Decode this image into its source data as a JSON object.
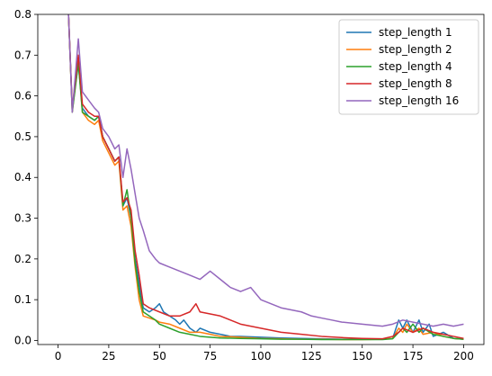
{
  "chart_data": {
    "type": "line",
    "title": "",
    "xlabel": "",
    "ylabel": "",
    "xlim": [
      -10,
      210
    ],
    "ylim": [
      -0.01,
      0.8
    ],
    "x_ticks": [
      0,
      25,
      50,
      75,
      100,
      125,
      150,
      175,
      200
    ],
    "y_ticks": [
      0.0,
      0.1,
      0.2,
      0.3,
      0.4,
      0.5,
      0.6,
      0.7,
      0.8
    ],
    "grid": false,
    "legend_position": "top-right",
    "series": [
      {
        "name": "step_length 1",
        "color": "#1f77b4",
        "points": [
          [
            5,
            0.82
          ],
          [
            7,
            0.57
          ],
          [
            10,
            0.68
          ],
          [
            12,
            0.57
          ],
          [
            15,
            0.55
          ],
          [
            18,
            0.54
          ],
          [
            20,
            0.55
          ],
          [
            22,
            0.5
          ],
          [
            25,
            0.47
          ],
          [
            28,
            0.44
          ],
          [
            30,
            0.45
          ],
          [
            32,
            0.33
          ],
          [
            34,
            0.35
          ],
          [
            36,
            0.3
          ],
          [
            38,
            0.2
          ],
          [
            40,
            0.14
          ],
          [
            42,
            0.08
          ],
          [
            45,
            0.07
          ],
          [
            48,
            0.08
          ],
          [
            50,
            0.09
          ],
          [
            52,
            0.07
          ],
          [
            55,
            0.06
          ],
          [
            58,
            0.05
          ],
          [
            60,
            0.04
          ],
          [
            62,
            0.05
          ],
          [
            65,
            0.03
          ],
          [
            68,
            0.02
          ],
          [
            70,
            0.03
          ],
          [
            75,
            0.02
          ],
          [
            80,
            0.015
          ],
          [
            85,
            0.01
          ],
          [
            90,
            0.01
          ],
          [
            100,
            0.008
          ],
          [
            110,
            0.006
          ],
          [
            120,
            0.005
          ],
          [
            130,
            0.004
          ],
          [
            140,
            0.003
          ],
          [
            150,
            0.003
          ],
          [
            160,
            0.003
          ],
          [
            165,
            0.005
          ],
          [
            168,
            0.05
          ],
          [
            170,
            0.03
          ],
          [
            172,
            0.05
          ],
          [
            175,
            0.02
          ],
          [
            178,
            0.05
          ],
          [
            180,
            0.02
          ],
          [
            183,
            0.04
          ],
          [
            185,
            0.01
          ],
          [
            190,
            0.02
          ],
          [
            195,
            0.005
          ],
          [
            200,
            0.003
          ]
        ]
      },
      {
        "name": "step_length 2",
        "color": "#ff7f0e",
        "points": [
          [
            5,
            0.82
          ],
          [
            7,
            0.56
          ],
          [
            10,
            0.69
          ],
          [
            12,
            0.56
          ],
          [
            15,
            0.54
          ],
          [
            18,
            0.53
          ],
          [
            20,
            0.54
          ],
          [
            22,
            0.49
          ],
          [
            25,
            0.46
          ],
          [
            28,
            0.43
          ],
          [
            30,
            0.44
          ],
          [
            32,
            0.32
          ],
          [
            34,
            0.33
          ],
          [
            36,
            0.28
          ],
          [
            38,
            0.18
          ],
          [
            40,
            0.1
          ],
          [
            42,
            0.06
          ],
          [
            45,
            0.055
          ],
          [
            48,
            0.05
          ],
          [
            50,
            0.045
          ],
          [
            55,
            0.04
          ],
          [
            60,
            0.03
          ],
          [
            65,
            0.02
          ],
          [
            70,
            0.02
          ],
          [
            75,
            0.015
          ],
          [
            80,
            0.01
          ],
          [
            90,
            0.008
          ],
          [
            100,
            0.005
          ],
          [
            110,
            0.004
          ],
          [
            120,
            0.003
          ],
          [
            130,
            0.003
          ],
          [
            140,
            0.002
          ],
          [
            150,
            0.002
          ],
          [
            160,
            0.003
          ],
          [
            165,
            0.005
          ],
          [
            168,
            0.03
          ],
          [
            170,
            0.02
          ],
          [
            172,
            0.04
          ],
          [
            175,
            0.02
          ],
          [
            178,
            0.03
          ],
          [
            180,
            0.015
          ],
          [
            185,
            0.02
          ],
          [
            190,
            0.01
          ],
          [
            195,
            0.005
          ],
          [
            200,
            0.003
          ]
        ]
      },
      {
        "name": "step_length 4",
        "color": "#2ca02c",
        "points": [
          [
            5,
            0.82
          ],
          [
            7,
            0.56
          ],
          [
            10,
            0.68
          ],
          [
            12,
            0.56
          ],
          [
            15,
            0.55
          ],
          [
            18,
            0.54
          ],
          [
            20,
            0.55
          ],
          [
            22,
            0.5
          ],
          [
            25,
            0.47
          ],
          [
            28,
            0.44
          ],
          [
            30,
            0.45
          ],
          [
            32,
            0.33
          ],
          [
            34,
            0.37
          ],
          [
            36,
            0.3
          ],
          [
            38,
            0.19
          ],
          [
            40,
            0.12
          ],
          [
            42,
            0.07
          ],
          [
            45,
            0.06
          ],
          [
            48,
            0.05
          ],
          [
            50,
            0.04
          ],
          [
            55,
            0.03
          ],
          [
            60,
            0.02
          ],
          [
            65,
            0.015
          ],
          [
            70,
            0.01
          ],
          [
            75,
            0.008
          ],
          [
            80,
            0.006
          ],
          [
            90,
            0.005
          ],
          [
            100,
            0.004
          ],
          [
            110,
            0.003
          ],
          [
            120,
            0.003
          ],
          [
            130,
            0.002
          ],
          [
            140,
            0.002
          ],
          [
            150,
            0.002
          ],
          [
            160,
            0.002
          ],
          [
            165,
            0.004
          ],
          [
            168,
            0.02
          ],
          [
            170,
            0.03
          ],
          [
            172,
            0.02
          ],
          [
            175,
            0.04
          ],
          [
            178,
            0.02
          ],
          [
            180,
            0.03
          ],
          [
            185,
            0.015
          ],
          [
            190,
            0.01
          ],
          [
            195,
            0.005
          ],
          [
            200,
            0.003
          ]
        ]
      },
      {
        "name": "step_length 8",
        "color": "#d62728",
        "points": [
          [
            5,
            0.82
          ],
          [
            7,
            0.57
          ],
          [
            10,
            0.7
          ],
          [
            12,
            0.58
          ],
          [
            15,
            0.56
          ],
          [
            18,
            0.55
          ],
          [
            20,
            0.55
          ],
          [
            22,
            0.5
          ],
          [
            25,
            0.47
          ],
          [
            28,
            0.44
          ],
          [
            30,
            0.45
          ],
          [
            32,
            0.34
          ],
          [
            34,
            0.35
          ],
          [
            36,
            0.32
          ],
          [
            38,
            0.22
          ],
          [
            40,
            0.16
          ],
          [
            42,
            0.09
          ],
          [
            45,
            0.08
          ],
          [
            50,
            0.07
          ],
          [
            55,
            0.06
          ],
          [
            60,
            0.06
          ],
          [
            65,
            0.07
          ],
          [
            68,
            0.09
          ],
          [
            70,
            0.07
          ],
          [
            75,
            0.065
          ],
          [
            80,
            0.06
          ],
          [
            85,
            0.05
          ],
          [
            90,
            0.04
          ],
          [
            95,
            0.035
          ],
          [
            100,
            0.03
          ],
          [
            110,
            0.02
          ],
          [
            120,
            0.015
          ],
          [
            130,
            0.01
          ],
          [
            140,
            0.007
          ],
          [
            150,
            0.005
          ],
          [
            160,
            0.004
          ],
          [
            165,
            0.01
          ],
          [
            168,
            0.02
          ],
          [
            170,
            0.03
          ],
          [
            175,
            0.02
          ],
          [
            180,
            0.03
          ],
          [
            185,
            0.02
          ],
          [
            190,
            0.015
          ],
          [
            195,
            0.01
          ],
          [
            200,
            0.005
          ]
        ]
      },
      {
        "name": "step_length 16",
        "color": "#9467bd",
        "points": [
          [
            5,
            0.82
          ],
          [
            7,
            0.56
          ],
          [
            10,
            0.74
          ],
          [
            12,
            0.61
          ],
          [
            15,
            0.59
          ],
          [
            18,
            0.57
          ],
          [
            20,
            0.56
          ],
          [
            22,
            0.52
          ],
          [
            25,
            0.5
          ],
          [
            28,
            0.47
          ],
          [
            30,
            0.48
          ],
          [
            32,
            0.4
          ],
          [
            34,
            0.47
          ],
          [
            36,
            0.42
          ],
          [
            38,
            0.36
          ],
          [
            40,
            0.3
          ],
          [
            42,
            0.27
          ],
          [
            45,
            0.22
          ],
          [
            48,
            0.2
          ],
          [
            50,
            0.19
          ],
          [
            55,
            0.18
          ],
          [
            60,
            0.17
          ],
          [
            65,
            0.16
          ],
          [
            70,
            0.15
          ],
          [
            75,
            0.17
          ],
          [
            80,
            0.15
          ],
          [
            85,
            0.13
          ],
          [
            90,
            0.12
          ],
          [
            95,
            0.13
          ],
          [
            100,
            0.1
          ],
          [
            105,
            0.09
          ],
          [
            110,
            0.08
          ],
          [
            115,
            0.075
          ],
          [
            120,
            0.07
          ],
          [
            125,
            0.06
          ],
          [
            130,
            0.055
          ],
          [
            135,
            0.05
          ],
          [
            140,
            0.045
          ],
          [
            150,
            0.04
          ],
          [
            160,
            0.035
          ],
          [
            165,
            0.04
          ],
          [
            170,
            0.05
          ],
          [
            175,
            0.045
          ],
          [
            180,
            0.04
          ],
          [
            185,
            0.035
          ],
          [
            190,
            0.04
          ],
          [
            195,
            0.035
          ],
          [
            200,
            0.04
          ]
        ]
      }
    ]
  }
}
